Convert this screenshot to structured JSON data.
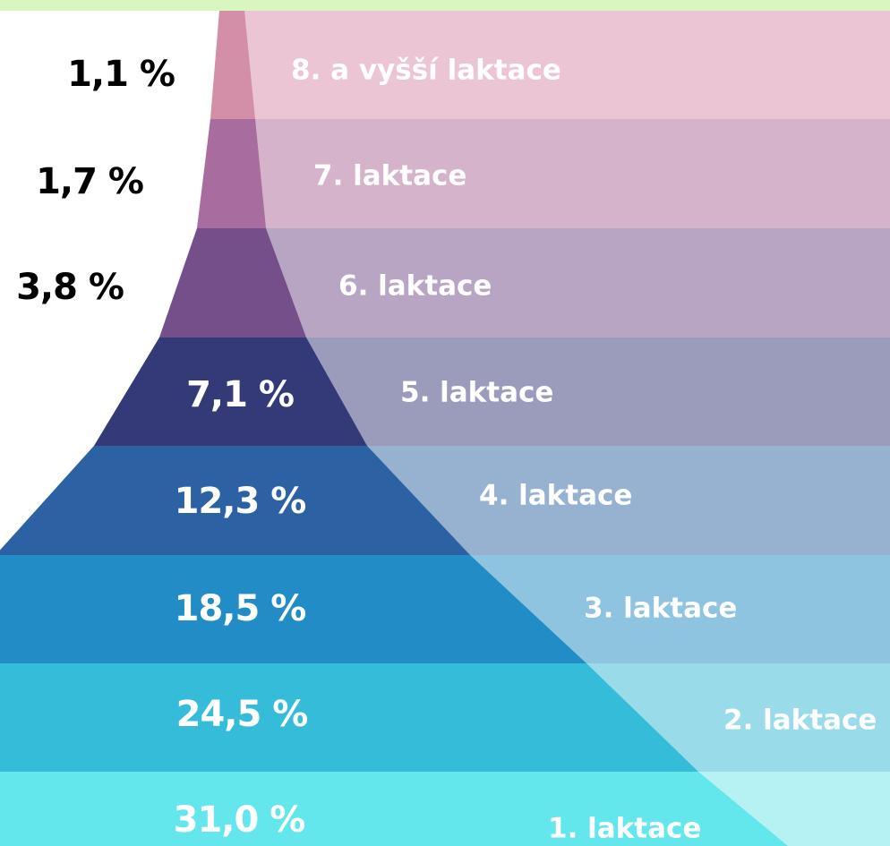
{
  "layers": [
    {
      "percent": "1,1 %",
      "label": "8. a vyšší laktace"
    },
    {
      "percent": "1,7 %",
      "label": "7. laktace"
    },
    {
      "percent": "3,8 %",
      "label": "6. laktace"
    },
    {
      "percent": "7,1 %",
      "label": "5. laktace"
    },
    {
      "percent": "12,3 %",
      "label": "4. laktace"
    },
    {
      "percent": "18,5 %",
      "label": "3. laktace"
    },
    {
      "percent": "24,5 %",
      "label": "2. laktace"
    },
    {
      "percent": "31,0 %",
      "label": "1. laktace"
    }
  ]
}
